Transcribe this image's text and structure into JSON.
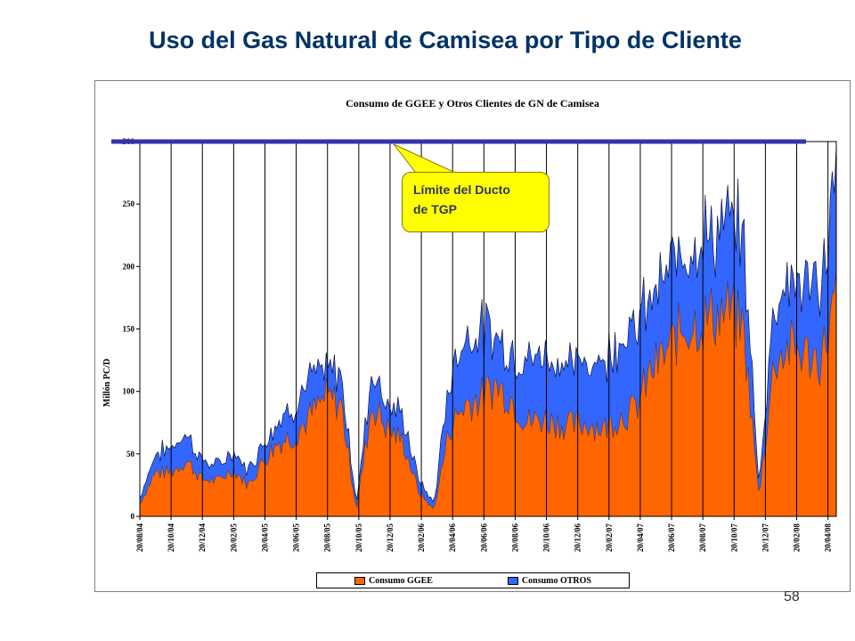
{
  "slide": {
    "title": "Uso  del Gas Natural de Camisea por Tipo de Cliente",
    "title_color": "#003366",
    "page_number": "58"
  },
  "annotation": {
    "line1": "Límite del Ducto",
    "line2": "de TGP",
    "fill_color": "#ffff00",
    "line_value": 300,
    "line_color": "#3333aa"
  },
  "chart_data": {
    "type": "area",
    "title": "Consumo de GGEE y Otros Clientes de GN de Camisea",
    "xlabel": "",
    "ylabel": "Millón PC/D",
    "ylim": [
      0,
      300
    ],
    "yticks": [
      0,
      50,
      100,
      150,
      200,
      250,
      300
    ],
    "grid": {
      "vertical": true,
      "horizontal": false
    },
    "legend_position": "bottom",
    "x_ticks": [
      "20/08/04",
      "20/10/04",
      "20/12/04",
      "20/02/05",
      "20/04/05",
      "20/06/05",
      "20/08/05",
      "20/10/05",
      "20/12/05",
      "20/02/06",
      "20/04/06",
      "20/06/06",
      "20/08/06",
      "20/10/06",
      "20/12/06",
      "20/02/07",
      "20/04/07",
      "20/06/07",
      "20/08/07",
      "20/10/07",
      "20/12/07",
      "20/02/08",
      "20/04/08"
    ],
    "x": [
      "2004-08",
      "2004-09",
      "2004-10",
      "2004-11",
      "2004-12",
      "2005-01",
      "2005-02",
      "2005-03",
      "2005-04",
      "2005-05",
      "2005-06",
      "2005-07",
      "2005-08",
      "2005-09",
      "2005-10",
      "2005-11",
      "2005-12",
      "2006-01",
      "2006-02",
      "2006-03",
      "2006-04",
      "2006-05",
      "2006-06",
      "2006-07",
      "2006-08",
      "2006-09",
      "2006-10",
      "2006-11",
      "2006-12",
      "2007-01",
      "2007-02",
      "2007-03",
      "2007-04",
      "2007-05",
      "2007-06",
      "2007-07",
      "2007-08",
      "2007-09",
      "2007-10",
      "2007-11",
      "2007-12",
      "2008-01",
      "2008-02",
      "2008-03",
      "2008-04",
      "2008-05"
    ],
    "series": [
      {
        "name": "Consumo GGEE",
        "color": "#ff6600",
        "values": [
          10,
          35,
          35,
          45,
          30,
          28,
          38,
          25,
          45,
          60,
          65,
          80,
          95,
          90,
          5,
          90,
          70,
          60,
          20,
          5,
          70,
          90,
          95,
          105,
          95,
          75,
          78,
          75,
          72,
          75,
          70,
          80,
          85,
          115,
          130,
          150,
          155,
          160,
          165,
          150,
          15,
          125,
          135,
          130,
          125,
          175
        ]
      },
      {
        "name": "Consumo OTROS",
        "color": "#3366ff",
        "values": [
          5,
          15,
          20,
          22,
          15,
          12,
          14,
          12,
          15,
          18,
          25,
          30,
          20,
          25,
          5,
          30,
          20,
          20,
          10,
          5,
          40,
          55,
          55,
          40,
          38,
          50,
          52,
          50,
          48,
          50,
          55,
          65,
          65,
          60,
          60,
          65,
          70,
          65,
          70,
          75,
          10,
          50,
          55,
          55,
          60,
          100
        ]
      }
    ]
  }
}
